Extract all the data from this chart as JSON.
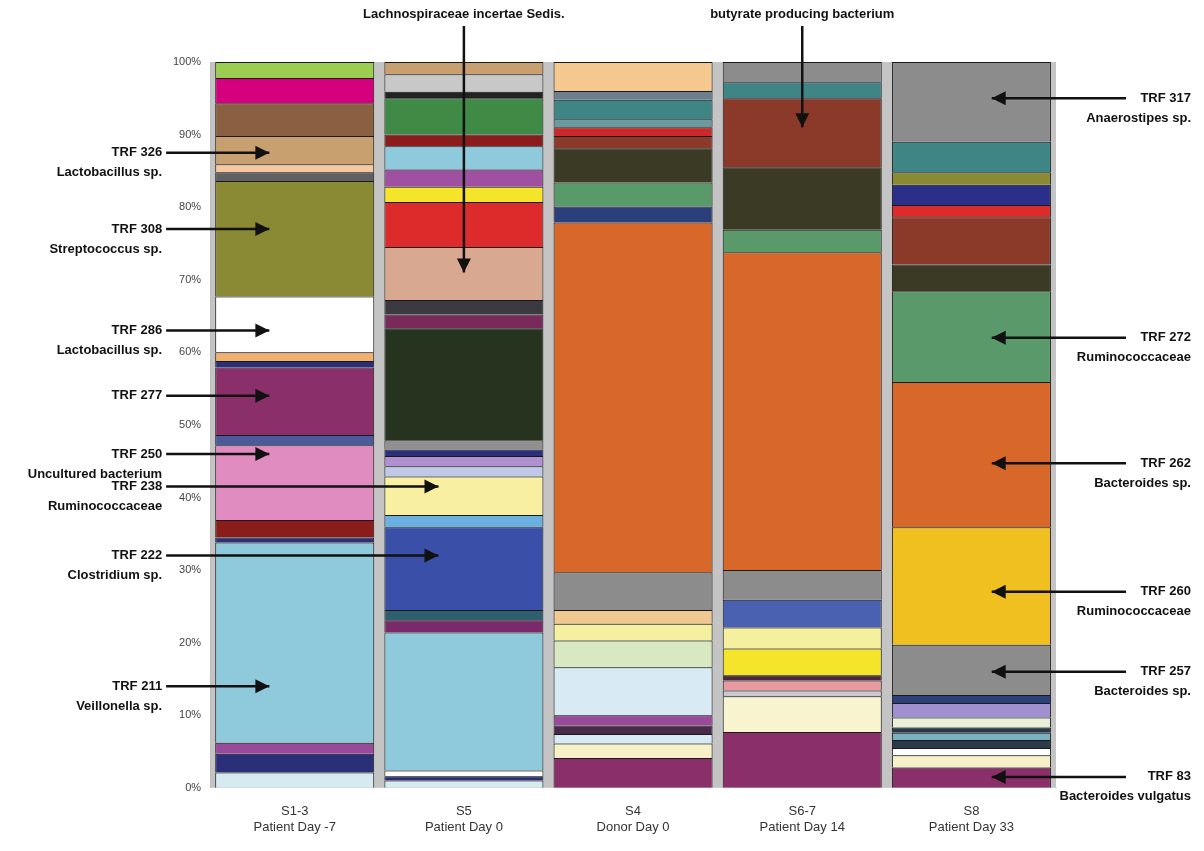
{
  "chart_data": {
    "type": "bar",
    "stacked": true,
    "categories": [
      "S1-3\nPatient Day -7",
      "S5\nPatient Day 0",
      "S4\nDonor Day 0",
      "S6-7\nPatient Day 14",
      "S8\nPatient Day 33"
    ],
    "ylim": [
      0,
      100
    ],
    "yticks": [
      {
        "value": 0,
        "label": "0%"
      },
      {
        "value": 10,
        "label": "10%"
      },
      {
        "value": 20,
        "label": "20%"
      },
      {
        "value": 30,
        "label": "30%"
      },
      {
        "value": 40,
        "label": "40%"
      },
      {
        "value": 50,
        "label": "50%"
      },
      {
        "value": 60,
        "label": "60%"
      },
      {
        "value": 70,
        "label": "70%"
      },
      {
        "value": 80,
        "label": "80%"
      },
      {
        "value": 90,
        "label": "90%"
      },
      {
        "value": 100,
        "label": "100%"
      }
    ],
    "series": [
      {
        "values": [
          2.1,
          1.0,
          4.1,
          7.7,
          2.8
        ],
        "colors": [
          "#d7eaf2",
          "#d7eaf2",
          "#8b2f6b",
          "#8b2f6b",
          "#8b2f6b"
        ]
      },
      {
        "values": [
          2.6,
          0.6,
          2.0,
          4.9,
          1.7
        ],
        "colors": [
          "#2b2f7a",
          "#2b2f7a",
          "#f8f0c8",
          "#f8f4d0",
          "#f8f0c8"
        ]
      },
      {
        "values": [
          1.5,
          0.8,
          1.3,
          0.8,
          1.0
        ],
        "colors": [
          "#9a4a9a",
          "#ffffff",
          "#d7eaf2",
          "#c8c8d0",
          "#ffffff"
        ]
      },
      {
        "values": [
          27.6,
          19.0,
          1.2,
          1.4,
          1.1
        ],
        "colors": [
          "#8ec9dc",
          "#8ec9dc",
          "#4a2a4a",
          "#e89aa0",
          "#2a3a4a"
        ]
      },
      {
        "values": [
          0.7,
          1.7,
          1.4,
          0.7,
          1.0
        ],
        "colors": [
          "#2b2f7a",
          "#7a2a6a",
          "#9a4a9a",
          "#4a2a3a",
          "#7ab0c0"
        ]
      },
      {
        "values": [
          2.4,
          1.4,
          6.6,
          3.7,
          0.7
        ],
        "colors": [
          "#8b1c1c",
          "#2f5f6f",
          "#d8eaf4",
          "#f5e52a",
          "#2a3a4a"
        ]
      },
      {
        "values": [
          10.3,
          11.4,
          3.7,
          2.9,
          1.4
        ],
        "colors": [
          "#e08cc0",
          "#3a4fa8",
          "#d8e8c0",
          "#f5f0a0",
          "#e8f0d8"
        ]
      },
      {
        "values": [
          1.4,
          1.7,
          2.3,
          3.8,
          2.0
        ],
        "colors": [
          "#4a5a9a",
          "#6ab0e0",
          "#f5f0a0",
          "#4a60b0",
          "#a090d0"
        ]
      },
      {
        "values": [
          9.3,
          5.3,
          1.9,
          4.1,
          1.1
        ],
        "colors": [
          "#8b2f6b",
          "#f8f0a0",
          "#f0c890",
          "#8c8c8c",
          "#2b3f7a"
        ]
      },
      {
        "values": [
          0.9,
          1.4,
          5.2,
          43.8,
          6.9
        ],
        "colors": [
          "#2b2f7a",
          "#c0c8e8",
          "#8c8c8c",
          "#d8682a",
          "#8c8c8c"
        ]
      },
      {
        "values": [
          1.2,
          1.4,
          48.2,
          3.1,
          16.2
        ],
        "colors": [
          "#f0b070",
          "#b090d0",
          "#d8682a",
          "#5a9a6a",
          "#f0c020"
        ]
      },
      {
        "values": [
          7.7,
          0.9,
          2.2,
          8.6,
          20.0
        ],
        "colors": [
          "#ffffff",
          "#2b2f7a",
          "#2b3f7a",
          "#3a3a25",
          "#d8682a"
        ]
      },
      {
        "values": [
          15.9,
          1.3,
          3.3,
          9.5,
          12.5
        ],
        "colors": [
          "#8a8a35",
          "#909090",
          "#5a9a6a",
          "#8b3a2a",
          "#5a9a6a"
        ]
      },
      {
        "values": [
          1.2,
          15.4,
          4.7,
          2.2,
          3.7
        ],
        "colors": [
          "#606060",
          "#25331f",
          "#3a3a25",
          "#3f8585",
          "#3a3a25"
        ]
      },
      {
        "values": [
          1.1,
          1.9,
          1.7,
          2.8,
          6.5
        ],
        "colors": [
          "#f5c8a0",
          "#7a2a5a",
          "#8b3a2a",
          "#8c8c8c",
          "#8b3a2a"
        ]
      },
      {
        "values": [
          3.9,
          2.0,
          1.2,
          null,
          1.7
        ],
        "colors": [
          "#c8a070",
          "#3a3a40",
          "#cc2a2a",
          "#ffffff",
          "#dd2a2a"
        ]
      },
      {
        "values": [
          4.5,
          7.3,
          1.1,
          null,
          2.8
        ],
        "colors": [
          "#8b6040",
          "#d8a890",
          "#6a9aa0",
          "#ffffff",
          "#2b2f8a"
        ]
      },
      {
        "values": [
          3.5,
          6.2,
          2.7,
          null,
          1.7
        ],
        "colors": [
          "#d6007f",
          "#dd2a2a",
          "#3f8585",
          "#ffffff",
          "#8a8a35"
        ]
      },
      {
        "values": [
          2.2,
          2.1,
          1.2,
          null,
          4.2
        ],
        "colors": [
          "#9acd50",
          "#f5e52a",
          "#6a8090",
          "#ffffff",
          "#3f8585"
        ]
      },
      {
        "values": [
          null,
          2.4,
          4.0,
          null,
          11.0
        ],
        "colors": [
          "#ffffff",
          "#a050a0",
          "#f5c890",
          "#ffffff",
          "#8c8c8c"
        ]
      },
      {
        "values": [
          null,
          3.2,
          null,
          null,
          null
        ],
        "colors": [
          "#ffffff",
          "#8ec9dc",
          "#ffffff",
          "#ffffff",
          "#ffffff"
        ]
      },
      {
        "values": [
          null,
          1.6,
          null,
          null,
          null
        ],
        "colors": [
          "#ffffff",
          "#8b1c1c",
          "#ffffff",
          "#ffffff",
          "#ffffff"
        ]
      },
      {
        "values": [
          null,
          5.0,
          null,
          null,
          null
        ],
        "colors": [
          "#ffffff",
          "#3f8a45",
          "#ffffff",
          "#ffffff",
          "#ffffff"
        ]
      },
      {
        "values": [
          null,
          0.9,
          null,
          null,
          null
        ],
        "colors": [
          "#ffffff",
          "#222222",
          "#ffffff",
          "#ffffff",
          "#ffffff"
        ]
      },
      {
        "values": [
          null,
          2.4,
          null,
          null,
          null
        ],
        "colors": [
          "#ffffff",
          "#c8c8c8",
          "#ffffff",
          "#ffffff",
          "#ffffff"
        ]
      },
      {
        "values": [
          null,
          1.7,
          null,
          null,
          null
        ],
        "colors": [
          "#ffffff",
          "#c8a070",
          "#ffffff",
          "#ffffff",
          "#ffffff"
        ]
      }
    ],
    "annotations": [
      "TRF 326\nLactobacillus sp.",
      "TRF 308\nStreptococcus sp.",
      "TRF 286\nLactobacillus sp.",
      "TRF 277",
      "TRF 250\nUncultured bacterium",
      "TRF 238\nRuminococcaceae",
      "TRF 222\nClostridium sp.",
      "TRF 211\nVeillonella sp.",
      "Lachnospiraceae incertae Sedis.",
      "butyrate producing bacterium",
      "TRF 317\nAnaerostipes sp.",
      "TRF 272\nRuminococcaceae",
      "TRF 262\nBacteroides sp.",
      "TRF 260\nRuminococcaceae",
      "TRF 257\nBacteroides sp.",
      "TRF 83\nBacteroides vulgatus"
    ]
  }
}
